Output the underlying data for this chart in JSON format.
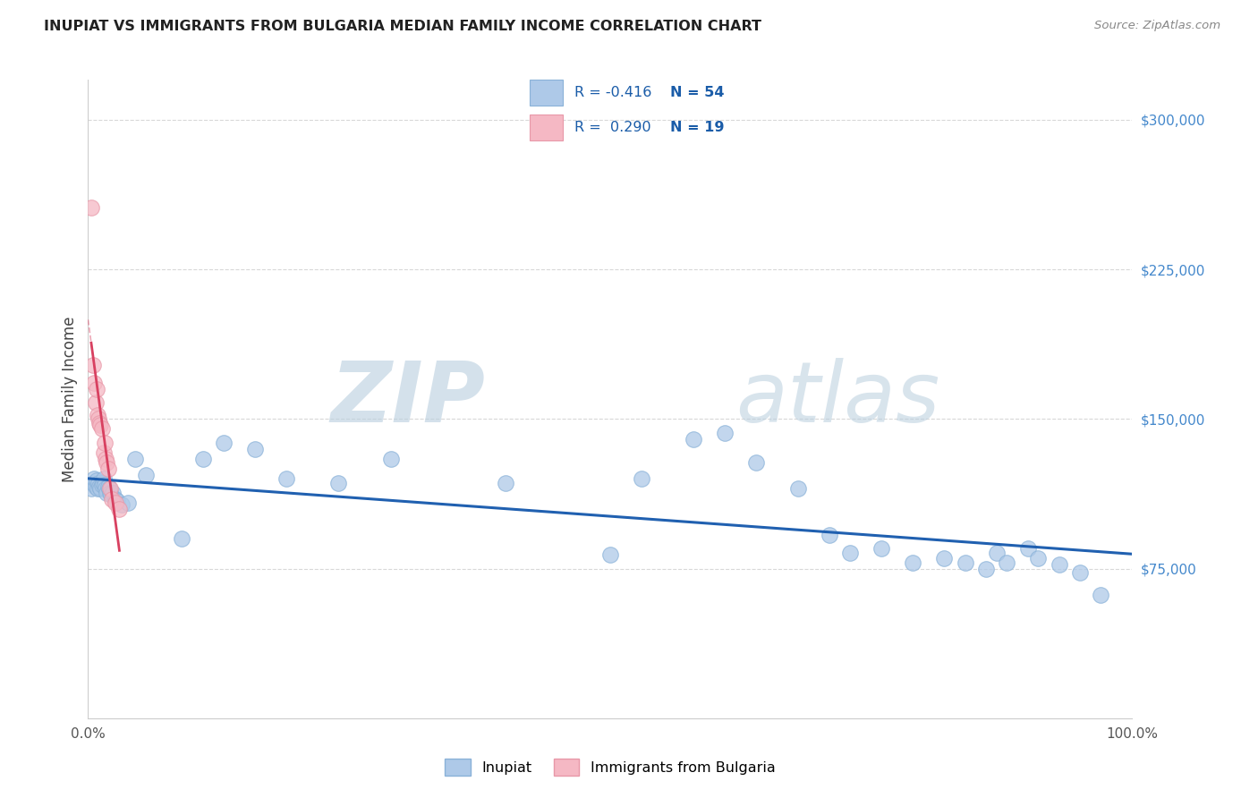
{
  "title": "INUPIAT VS IMMIGRANTS FROM BULGARIA MEDIAN FAMILY INCOME CORRELATION CHART",
  "source": "Source: ZipAtlas.com",
  "ylabel": "Median Family Income",
  "watermark_zip": "ZIP",
  "watermark_atlas": "atlas",
  "xlim": [
    0.0,
    1.0
  ],
  "ylim": [
    0,
    320000
  ],
  "yticks": [
    75000,
    150000,
    225000,
    300000
  ],
  "ytick_labels": [
    "$75,000",
    "$150,000",
    "$225,000",
    "$300,000"
  ],
  "xticks": [
    0.0,
    0.2,
    0.4,
    0.6,
    0.8,
    1.0
  ],
  "xtick_labels": [
    "0.0%",
    "",
    "",
    "",
    "",
    "100.0%"
  ],
  "series1_label": "Inupiat",
  "series1_color": "#aec9e8",
  "series1_edge": "#8ab2d8",
  "series1_R": "-0.416",
  "series1_N": "54",
  "series2_label": "Immigrants from Bulgaria",
  "series2_color": "#f5b8c4",
  "series2_edge": "#e898a8",
  "series2_R": "0.290",
  "series2_N": "19",
  "trend1_color": "#2060b0",
  "trend2_color": "#d84060",
  "inupiat_x": [
    0.003,
    0.005,
    0.006,
    0.007,
    0.008,
    0.009,
    0.01,
    0.011,
    0.012,
    0.013,
    0.014,
    0.015,
    0.016,
    0.017,
    0.018,
    0.019,
    0.02,
    0.021,
    0.022,
    0.024,
    0.026,
    0.028,
    0.032,
    0.038,
    0.045,
    0.055,
    0.09,
    0.11,
    0.13,
    0.16,
    0.19,
    0.24,
    0.29,
    0.4,
    0.5,
    0.53,
    0.58,
    0.61,
    0.64,
    0.68,
    0.71,
    0.73,
    0.76,
    0.79,
    0.82,
    0.84,
    0.86,
    0.87,
    0.88,
    0.9,
    0.91,
    0.93,
    0.95,
    0.97
  ],
  "inupiat_y": [
    115000,
    118000,
    120000,
    116000,
    119000,
    115000,
    118000,
    116000,
    115000,
    117000,
    118000,
    120000,
    117000,
    115000,
    113000,
    116000,
    115000,
    113000,
    112000,
    113000,
    110000,
    109000,
    107000,
    108000,
    130000,
    122000,
    90000,
    130000,
    138000,
    135000,
    120000,
    118000,
    130000,
    118000,
    82000,
    120000,
    140000,
    143000,
    128000,
    115000,
    92000,
    83000,
    85000,
    78000,
    80000,
    78000,
    75000,
    83000,
    78000,
    85000,
    80000,
    77000,
    73000,
    62000
  ],
  "bulgaria_x": [
    0.003,
    0.005,
    0.006,
    0.007,
    0.008,
    0.009,
    0.01,
    0.011,
    0.012,
    0.013,
    0.015,
    0.016,
    0.017,
    0.018,
    0.019,
    0.021,
    0.023,
    0.026,
    0.03
  ],
  "bulgaria_y": [
    256000,
    177000,
    168000,
    158000,
    165000,
    152000,
    150000,
    148000,
    147000,
    145000,
    133000,
    138000,
    130000,
    128000,
    125000,
    115000,
    110000,
    108000,
    105000
  ]
}
